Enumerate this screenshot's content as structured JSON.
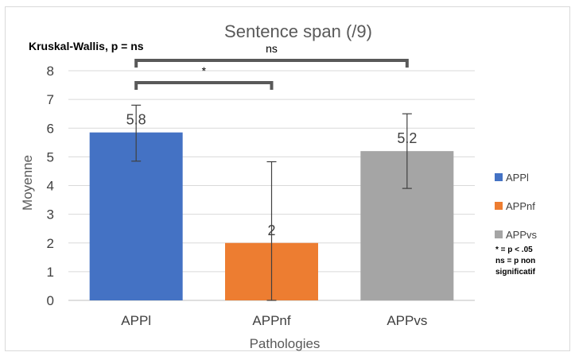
{
  "chart_data": {
    "type": "bar",
    "title": "Sentence span (/9)",
    "xlabel": "Pathologies",
    "ylabel": "Moyenne",
    "ylim": [
      0,
      8
    ],
    "yticks": [
      0,
      1,
      2,
      3,
      4,
      5,
      6,
      7,
      8
    ],
    "grid": true,
    "legend_position": "right",
    "categories": [
      "APPl",
      "APPnf",
      "APPvs"
    ],
    "values": [
      5.85,
      2.0,
      5.2
    ],
    "data_labels": [
      "5.8",
      "2",
      "5.2"
    ],
    "error_bars": [
      {
        "low": 4.85,
        "high": 6.8
      },
      {
        "low": 0.0,
        "high": 4.83
      },
      {
        "low": 3.9,
        "high": 6.5
      }
    ],
    "colors": [
      "#4472c4",
      "#ed7d31",
      "#a5a5a5"
    ],
    "annotations": {
      "test_note": "Kruskal-Wallis, p = ns",
      "significance_brackets": [
        {
          "from": 0,
          "to": 1,
          "label": "*"
        },
        {
          "from": 0,
          "to": 2,
          "label": "ns"
        }
      ],
      "legend_note": [
        "* = p < .05",
        "ns = p non",
        "significatif"
      ]
    }
  }
}
